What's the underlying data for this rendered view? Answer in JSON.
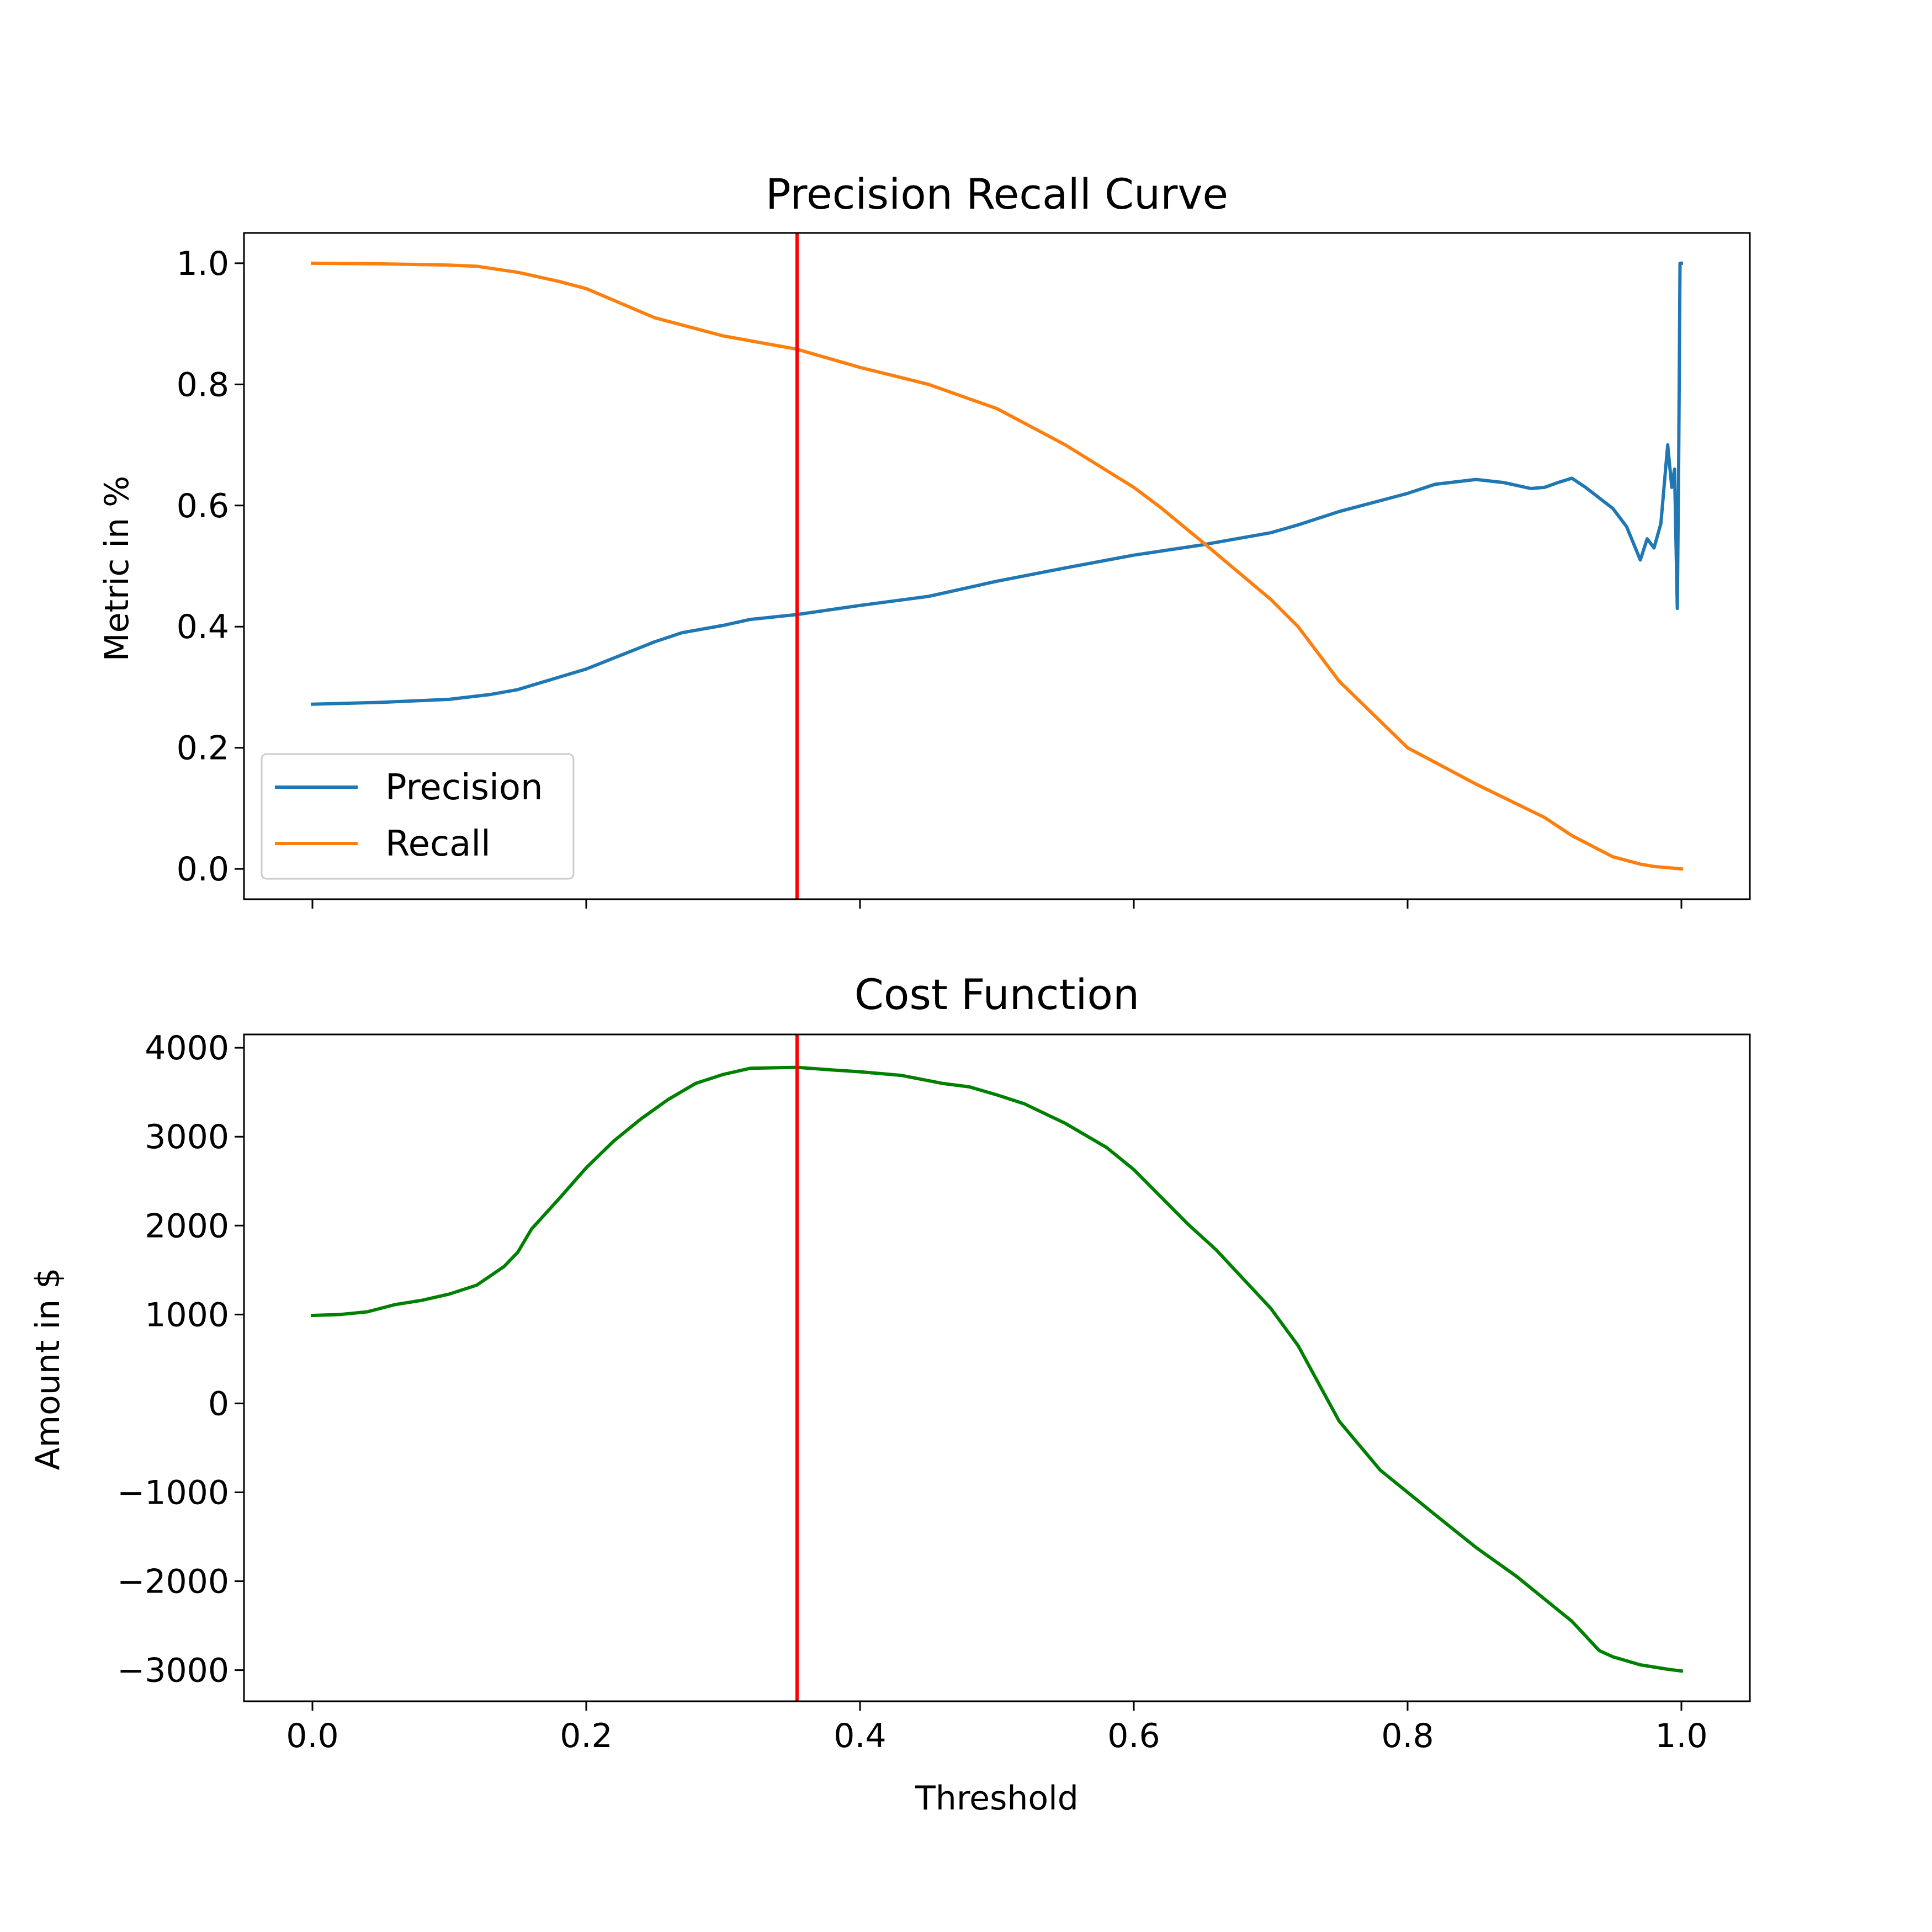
{
  "chart_data": [
    {
      "type": "line",
      "title": "Precision Recall Curve",
      "xlabel": "",
      "ylabel": "Metric in %",
      "xlim": [
        -0.05,
        1.05
      ],
      "ylim": [
        -0.05,
        1.05
      ],
      "xticks": [
        0.0,
        0.2,
        0.4,
        0.6,
        0.8,
        1.0
      ],
      "yticks": [
        0.0,
        0.2,
        0.4,
        0.6,
        0.8,
        1.0
      ],
      "ytick_labels": [
        "0.0",
        "0.2",
        "0.4",
        "0.6",
        "0.8",
        "1.0"
      ],
      "legend_position": "lower-left",
      "threshold_line": {
        "x": 0.354,
        "color": "#ff0000"
      },
      "series": [
        {
          "name": "Precision",
          "color": "#1f77b4",
          "x": [
            0.0,
            0.05,
            0.1,
            0.13,
            0.15,
            0.16,
            0.2,
            0.25,
            0.27,
            0.3,
            0.32,
            0.354,
            0.4,
            0.45,
            0.5,
            0.55,
            0.6,
            0.65,
            0.7,
            0.72,
            0.75,
            0.78,
            0.8,
            0.82,
            0.85,
            0.87,
            0.89,
            0.9,
            0.91,
            0.92,
            0.93,
            0.95,
            0.96,
            0.97,
            0.975,
            0.98,
            0.985,
            0.99,
            0.993,
            0.995,
            0.997,
            0.998,
            0.999,
            1.0
          ],
          "values": [
            0.272,
            0.275,
            0.28,
            0.288,
            0.296,
            0.303,
            0.33,
            0.375,
            0.39,
            0.402,
            0.412,
            0.42,
            0.435,
            0.45,
            0.475,
            0.497,
            0.518,
            0.535,
            0.555,
            0.568,
            0.59,
            0.608,
            0.62,
            0.635,
            0.643,
            0.638,
            0.628,
            0.63,
            0.638,
            0.645,
            0.63,
            0.595,
            0.565,
            0.51,
            0.545,
            0.53,
            0.57,
            0.7,
            0.63,
            0.66,
            0.43,
            0.66,
            1.0,
            1.0
          ]
        },
        {
          "name": "Recall",
          "color": "#ff7f0e",
          "x": [
            0.0,
            0.05,
            0.1,
            0.12,
            0.15,
            0.18,
            0.2,
            0.25,
            0.3,
            0.354,
            0.4,
            0.45,
            0.5,
            0.55,
            0.6,
            0.62,
            0.65,
            0.7,
            0.72,
            0.75,
            0.8,
            0.85,
            0.9,
            0.92,
            0.95,
            0.97,
            0.98,
            0.99,
            1.0
          ],
          "values": [
            1.0,
            0.999,
            0.997,
            0.995,
            0.985,
            0.97,
            0.958,
            0.91,
            0.88,
            0.858,
            0.828,
            0.8,
            0.76,
            0.7,
            0.63,
            0.596,
            0.54,
            0.445,
            0.4,
            0.31,
            0.2,
            0.14,
            0.085,
            0.055,
            0.02,
            0.008,
            0.004,
            0.002,
            0.0
          ]
        }
      ]
    },
    {
      "type": "line",
      "title": "Cost Function",
      "xlabel": "Threshold",
      "ylabel": "Amount in $",
      "xlim": [
        -0.05,
        1.05
      ],
      "ylim": [
        -3350,
        4150
      ],
      "xticks": [
        0.0,
        0.2,
        0.4,
        0.6,
        0.8,
        1.0
      ],
      "xtick_labels": [
        "0.0",
        "0.2",
        "0.4",
        "0.6",
        "0.8",
        "1.0"
      ],
      "yticks": [
        -3000,
        -2000,
        -1000,
        0,
        1000,
        2000,
        3000,
        4000
      ],
      "ytick_labels": [
        "−3000",
        "−2000",
        "−1000",
        "0",
        "1000",
        "2000",
        "3000",
        "4000"
      ],
      "threshold_line": {
        "x": 0.354,
        "color": "#ff0000"
      },
      "series": [
        {
          "name": "Cost",
          "color": "#008000",
          "x": [
            0.0,
            0.02,
            0.04,
            0.06,
            0.08,
            0.1,
            0.12,
            0.14,
            0.15,
            0.16,
            0.18,
            0.2,
            0.22,
            0.24,
            0.26,
            0.28,
            0.3,
            0.32,
            0.354,
            0.38,
            0.4,
            0.43,
            0.46,
            0.48,
            0.5,
            0.52,
            0.55,
            0.58,
            0.6,
            0.62,
            0.64,
            0.66,
            0.7,
            0.72,
            0.75,
            0.78,
            0.8,
            0.82,
            0.85,
            0.88,
            0.9,
            0.92,
            0.94,
            0.95,
            0.97,
            0.99,
            1.0
          ],
          "values": [
            990,
            1000,
            1030,
            1110,
            1160,
            1230,
            1330,
            1540,
            1700,
            1960,
            2300,
            2650,
            2950,
            3200,
            3420,
            3600,
            3700,
            3770,
            3780,
            3750,
            3730,
            3690,
            3600,
            3560,
            3470,
            3370,
            3150,
            2880,
            2630,
            2320,
            2010,
            1730,
            1070,
            650,
            -200,
            -750,
            -1000,
            -1250,
            -1620,
            -1950,
            -2200,
            -2450,
            -2780,
            -2850,
            -2940,
            -2990,
            -3010
          ]
        }
      ]
    }
  ]
}
